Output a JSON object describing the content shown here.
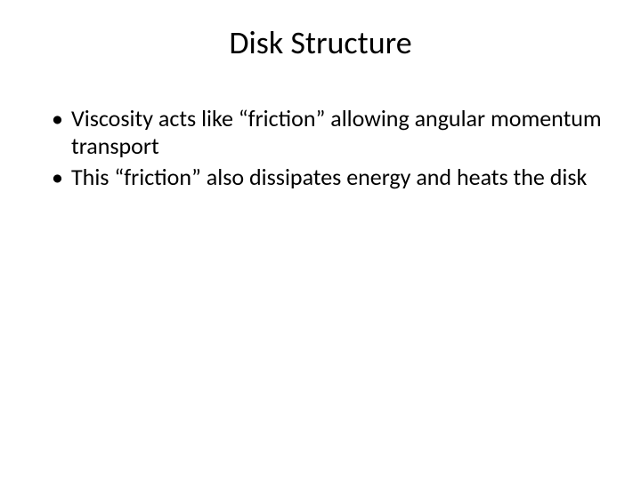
{
  "slide": {
    "title": "Disk Structure",
    "title_fontsize": 36,
    "title_color": "#000000",
    "body_fontsize": 26,
    "body_color": "#000000",
    "background_color": "#ffffff",
    "bullets": [
      "Viscosity acts like “friction” allowing angular momentum transport",
      "This “friction” also dissipates energy and heats the disk"
    ]
  }
}
